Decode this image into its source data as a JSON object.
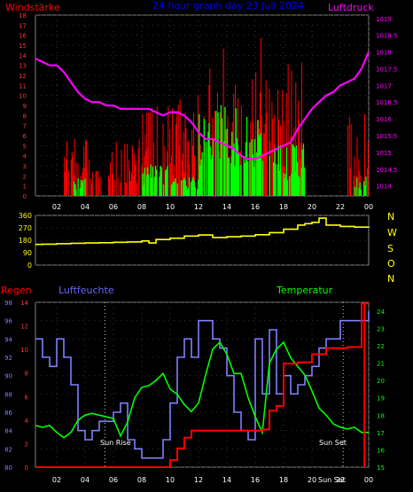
{
  "chart_data": [
    {
      "type": "bar",
      "title": "24 hour graph day  23 Juli 2024",
      "left_label": "Windstärke",
      "right_label": "Luftdruck",
      "x_ticks": [
        "02",
        "04",
        "06",
        "08",
        "10",
        "12",
        "14",
        "16",
        "18",
        "20",
        "22",
        "00"
      ],
      "y_left_ticks": [
        "0",
        "1",
        "2",
        "3",
        "4",
        "5",
        "6",
        "7",
        "8",
        "9",
        "10",
        "11",
        "12",
        "13",
        "14",
        "15",
        "16",
        "17",
        "18"
      ],
      "y_right_ticks": [
        "1014",
        "1014.5",
        "1015",
        "1015.5",
        "1016",
        "1016.5",
        "1017",
        "1017.5",
        "1018",
        "1018.5",
        "1019"
      ],
      "ylim_left": [
        0,
        18
      ],
      "ylim_right": [
        1013.7,
        1019.1
      ],
      "xlim": [
        0.5,
        24
      ],
      "colors": {
        "gust": "#ff0000",
        "wind": "#00ff00",
        "pressure": "#ff00ff"
      },
      "series": [
        {
          "type": "line",
          "color": "#ff00ff",
          "x": [
            0.5,
            1,
            1.5,
            2,
            2.5,
            3,
            3.5,
            4,
            4.5,
            5,
            5.5,
            6,
            6.5,
            7,
            7.5,
            8,
            8.5,
            9,
            9.5,
            10,
            10.5,
            11,
            11.5,
            12,
            12.5,
            13,
            13.5,
            14,
            14.5,
            15,
            15.5,
            16,
            16.5,
            17,
            17.5,
            18,
            18.5,
            19,
            19.5,
            20,
            20.5,
            21,
            21.5,
            22,
            22.5,
            23,
            23.5,
            24
          ],
          "y": [
            1017.8,
            1017.7,
            1017.6,
            1017.6,
            1017.4,
            1017.1,
            1016.8,
            1016.6,
            1016.5,
            1016.5,
            1016.4,
            1016.4,
            1016.3,
            1016.3,
            1016.3,
            1016.3,
            1016.3,
            1016.2,
            1016.1,
            1016.2,
            1016.2,
            1016.1,
            1015.9,
            1015.6,
            1015.4,
            1015.4,
            1015.3,
            1015.2,
            1015.1,
            1014.9,
            1014.8,
            1014.8,
            1014.9,
            1015.0,
            1015.1,
            1015.2,
            1015.3,
            1015.7,
            1016.0,
            1016.3,
            1016.5,
            1016.7,
            1016.8,
            1017.0,
            1017.1,
            1017.2,
            1017.5,
            1018.0
          ]
        }
      ]
    },
    {
      "type": "line",
      "right_letters": [
        "N",
        "W",
        "S",
        "O",
        "N"
      ],
      "y_ticks": [
        "0",
        "90",
        "180",
        "270",
        "360"
      ],
      "ylim": [
        0,
        360
      ],
      "xlim": [
        0.5,
        24
      ],
      "series": [
        {
          "color": "#ffff00",
          "x": [
            0.5,
            1,
            2,
            3,
            4,
            5,
            6,
            7,
            8,
            8.5,
            9,
            10,
            11,
            12,
            13,
            14,
            15,
            16,
            17,
            18,
            19,
            19.5,
            20,
            20.5,
            21,
            22,
            23,
            24
          ],
          "y": [
            150,
            152,
            155,
            158,
            160,
            162,
            165,
            168,
            175,
            160,
            185,
            195,
            210,
            218,
            200,
            205,
            210,
            220,
            235,
            260,
            290,
            300,
            310,
            340,
            290,
            280,
            275,
            280
          ]
        }
      ]
    },
    {
      "type": "line",
      "labels": [
        "Regen",
        "Luftfeuchte",
        "Temperatur"
      ],
      "annotations": [
        "Sun Rise",
        "Sun Set",
        "Sun Set"
      ],
      "x_ticks": [
        "02",
        "04",
        "06",
        "08",
        "10",
        "12",
        "14",
        "16",
        "18",
        "20",
        "22",
        "00"
      ],
      "y_rain_ticks": [
        "0",
        "2",
        "4",
        "6",
        "8",
        "10",
        "12",
        "14"
      ],
      "y_humidity_ticks": [
        "80",
        "82",
        "84",
        "86",
        "88",
        "90",
        "92",
        "94",
        "96",
        "98"
      ],
      "y_temp_ticks": [
        "15",
        "16",
        "17",
        "18",
        "19",
        "20",
        "21",
        "22",
        "23",
        "24"
      ],
      "ylim_rain": [
        0,
        14
      ],
      "ylim_humidity": [
        80,
        98
      ],
      "ylim_temp": [
        15,
        24.5
      ],
      "xlim": [
        0.5,
        24
      ],
      "series": [
        {
          "name": "Regen",
          "color": "#ff0000",
          "x": [
            0.5,
            9,
            9.8,
            10,
            10.5,
            11,
            11.5,
            12,
            13,
            14,
            15,
            16,
            16.5,
            17,
            17.5,
            18,
            19,
            20,
            21,
            22,
            22.5,
            23,
            23.5,
            24
          ],
          "y": [
            0,
            0,
            0,
            0.6,
            1.6,
            2.5,
            3.1,
            3.1,
            3.1,
            3.1,
            3.1,
            3.1,
            3.2,
            4.8,
            5.2,
            8.8,
            8.9,
            9.6,
            10.1,
            10.1,
            10.2,
            10.2,
            13.9,
            13.9
          ]
        },
        {
          "name": "Luftfeuchte",
          "color": "#8080ff",
          "x": [
            0.5,
            1,
            1.5,
            2,
            2.5,
            3,
            3.5,
            4,
            4.5,
            5,
            5.5,
            6,
            6.5,
            7,
            7.5,
            8,
            8.5,
            9,
            9.5,
            10,
            10.5,
            11,
            11.5,
            12,
            12.5,
            13,
            13.5,
            14,
            14.5,
            15,
            15.5,
            16,
            16.5,
            17,
            17.5,
            18,
            18.5,
            19,
            19.5,
            20,
            20.5,
            21,
            21.5,
            22,
            22.5,
            23,
            23.5,
            24
          ],
          "y": [
            94,
            92,
            91,
            94,
            92,
            89,
            84,
            83,
            84,
            85,
            85,
            86,
            87,
            83,
            82,
            81,
            81,
            81,
            83,
            87,
            92,
            94,
            92,
            96,
            96,
            94,
            93,
            90,
            86,
            84,
            83,
            94,
            88,
            95,
            88,
            90,
            88,
            89,
            90,
            91,
            93,
            94,
            94,
            96,
            96,
            96,
            96,
            97
          ]
        },
        {
          "name": "Temperatur",
          "color": "#00ff00",
          "x": [
            0.5,
            1,
            1.5,
            2,
            2.5,
            3,
            3.5,
            4,
            4.5,
            5,
            5.5,
            6,
            6.5,
            7,
            7.5,
            8,
            8.5,
            9,
            9.5,
            10,
            10.5,
            11,
            11.5,
            12,
            12.5,
            13,
            13.5,
            14,
            14.5,
            15,
            15.5,
            16,
            16.5,
            17,
            17.5,
            18,
            18.5,
            19,
            19.5,
            20,
            20.5,
            21,
            21.5,
            22,
            22.5,
            23,
            23.5,
            24
          ],
          "y": [
            17.4,
            17.3,
            17.4,
            17.0,
            16.7,
            17.0,
            17.7,
            18.0,
            18.1,
            18.0,
            17.9,
            17.8,
            16.8,
            17.6,
            19.0,
            19.6,
            19.7,
            20.0,
            20.4,
            19.5,
            19.2,
            18.6,
            18.2,
            18.7,
            20.3,
            21.8,
            22.2,
            21.5,
            20.4,
            20.4,
            19.0,
            17.9,
            17.0,
            21.0,
            21.8,
            22.2,
            21.3,
            20.8,
            20.3,
            19.4,
            18.4,
            18.0,
            17.5,
            17.3,
            17.2,
            17.3,
            17.0,
            17.0
          ]
        }
      ]
    }
  ]
}
